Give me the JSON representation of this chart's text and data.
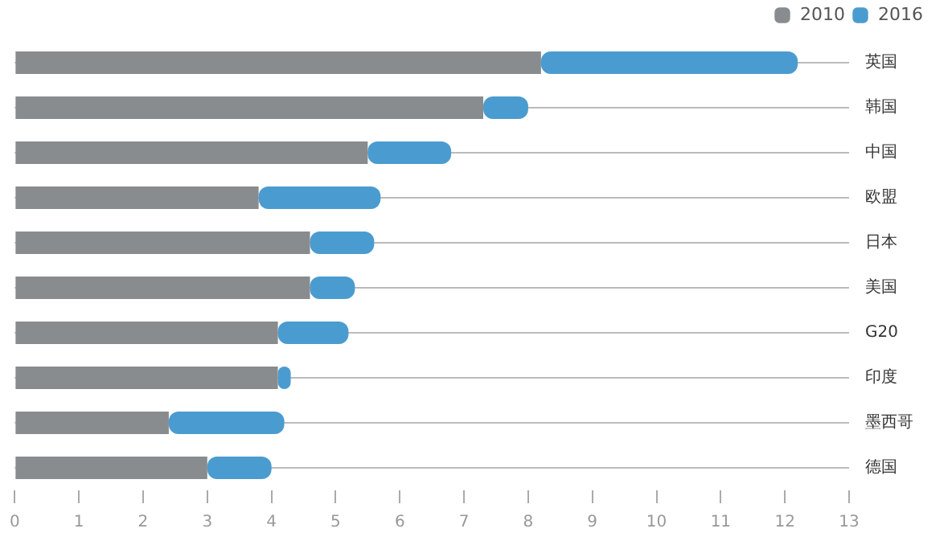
{
  "chart_data": {
    "type": "bar",
    "orientation": "horizontal",
    "stacked": true,
    "categories": [
      "英国",
      "韩国",
      "中国",
      "欧盟",
      "日本",
      "美国",
      "G20",
      "印度",
      "墨西哥",
      "德国"
    ],
    "series": [
      {
        "name": "2010",
        "color": "#898c8e",
        "values": [
          8.2,
          7.3,
          5.5,
          3.8,
          4.6,
          4.6,
          4.1,
          4.1,
          2.4,
          3.0
        ]
      },
      {
        "name": "2016",
        "color": "#4a9cd0",
        "values": [
          4.0,
          0.7,
          1.3,
          1.9,
          1.0,
          0.7,
          1.1,
          0.2,
          1.8,
          1.0
        ]
      }
    ],
    "xlim": [
      0,
      13
    ],
    "xticks": [
      0,
      1,
      2,
      3,
      4,
      5,
      6,
      7,
      8,
      9,
      10,
      11,
      12,
      13
    ],
    "grid": "y",
    "legend": "top right"
  }
}
